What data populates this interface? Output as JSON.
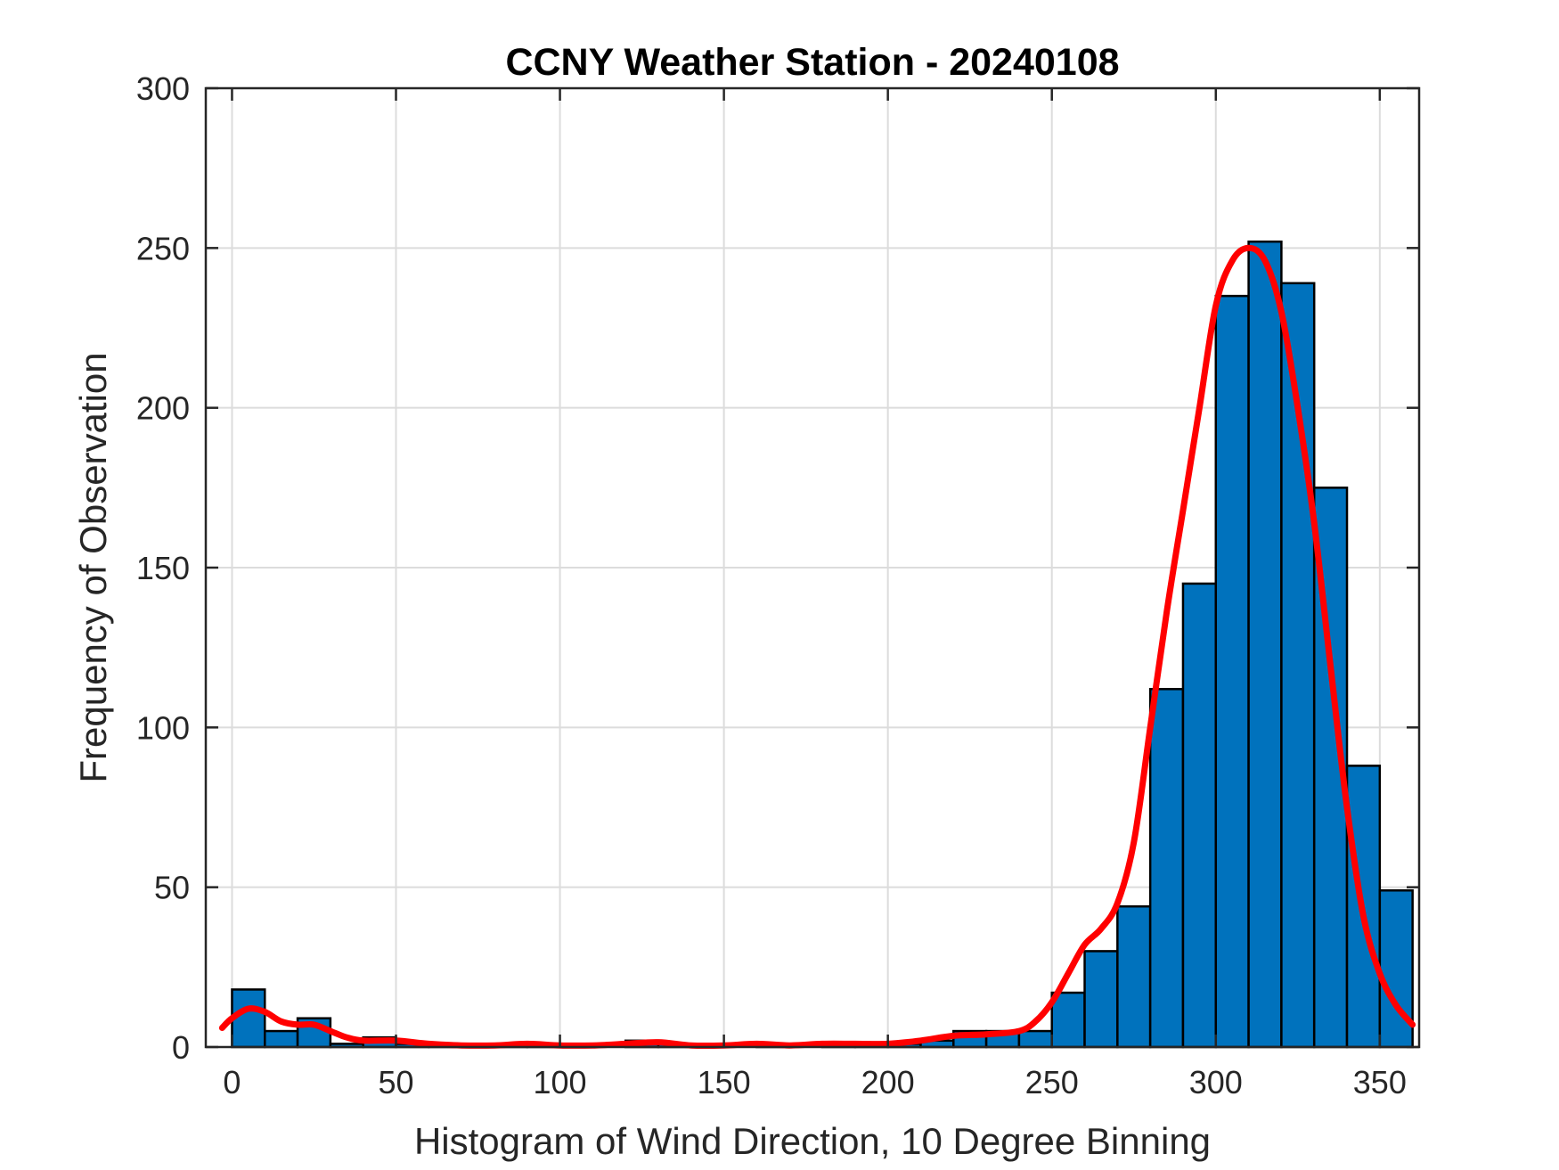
{
  "chart_data": {
    "type": "bar",
    "title": "CCNY Weather Station - 20240108",
    "xlabel": "Histogram of Wind Direction, 10 Degree Binning",
    "ylabel": "Frequency of Observation",
    "xlim": [
      -8,
      362
    ],
    "ylim": [
      0,
      300
    ],
    "xticks": [
      0,
      50,
      100,
      150,
      200,
      250,
      300,
      350
    ],
    "yticks": [
      0,
      50,
      100,
      150,
      200,
      250,
      300
    ],
    "grid": true,
    "bin_width": 10,
    "bins": [
      {
        "start": 0,
        "value": 18
      },
      {
        "start": 10,
        "value": 5
      },
      {
        "start": 20,
        "value": 9
      },
      {
        "start": 30,
        "value": 1
      },
      {
        "start": 40,
        "value": 3
      },
      {
        "start": 50,
        "value": 1
      },
      {
        "start": 60,
        "value": 1
      },
      {
        "start": 70,
        "value": 0
      },
      {
        "start": 80,
        "value": 1
      },
      {
        "start": 90,
        "value": 1
      },
      {
        "start": 100,
        "value": 0
      },
      {
        "start": 110,
        "value": 0
      },
      {
        "start": 120,
        "value": 2
      },
      {
        "start": 130,
        "value": 1
      },
      {
        "start": 140,
        "value": 0
      },
      {
        "start": 150,
        "value": 0
      },
      {
        "start": 160,
        "value": 1
      },
      {
        "start": 170,
        "value": 0
      },
      {
        "start": 180,
        "value": 1
      },
      {
        "start": 190,
        "value": 1
      },
      {
        "start": 200,
        "value": 1
      },
      {
        "start": 210,
        "value": 2
      },
      {
        "start": 220,
        "value": 5
      },
      {
        "start": 230,
        "value": 5
      },
      {
        "start": 240,
        "value": 5
      },
      {
        "start": 250,
        "value": 17
      },
      {
        "start": 260,
        "value": 30
      },
      {
        "start": 270,
        "value": 44
      },
      {
        "start": 280,
        "value": 112
      },
      {
        "start": 290,
        "value": 145
      },
      {
        "start": 300,
        "value": 235
      },
      {
        "start": 310,
        "value": 252
      },
      {
        "start": 320,
        "value": 239
      },
      {
        "start": 330,
        "value": 175
      },
      {
        "start": 340,
        "value": 88
      },
      {
        "start": 350,
        "value": 49
      }
    ],
    "fit_curve": {
      "x": [
        -3,
        0,
        5,
        10,
        15,
        20,
        25,
        30,
        35,
        40,
        50,
        60,
        70,
        80,
        90,
        100,
        110,
        120,
        130,
        140,
        150,
        160,
        170,
        180,
        190,
        200,
        210,
        220,
        230,
        240,
        245,
        250,
        255,
        260,
        265,
        270,
        275,
        280,
        285,
        290,
        295,
        300,
        305,
        310,
        315,
        320,
        325,
        330,
        335,
        340,
        345,
        350,
        355,
        360
      ],
      "y": [
        6,
        9,
        12,
        11,
        8,
        7,
        7,
        5,
        3,
        2,
        2,
        1,
        0.5,
        0.5,
        1,
        0.5,
        0.5,
        1,
        1.5,
        0.5,
        0.5,
        1,
        0.5,
        1,
        1,
        1,
        2,
        3.5,
        4,
        5,
        8,
        14,
        23,
        32,
        37,
        45,
        64,
        100,
        136,
        168,
        200,
        232,
        246,
        250,
        246,
        230,
        200,
        164,
        119,
        75,
        41,
        23,
        13,
        7
      ],
      "color": "#ff0000"
    },
    "bar_color": "#0072bd",
    "edge_color": "#000000"
  }
}
